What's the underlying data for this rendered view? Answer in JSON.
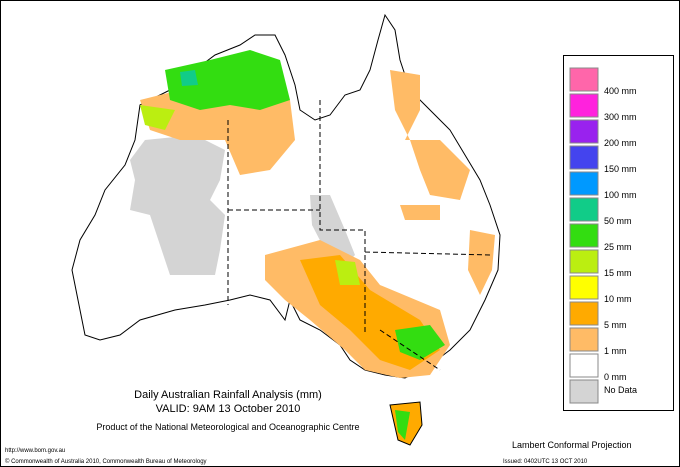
{
  "title": "Daily Australian Rainfall Analysis (mm)",
  "valid": "VALID: 9AM 13 October 2010",
  "product": "Product of the National Meteorological and Oceanographic Centre",
  "url": "http://www.bom.gov.au",
  "copyright": "© Commonwealth of Australia 2010, Commonwealth Bureau of Meteorology",
  "projection": "Lambert Conformal Projection",
  "issued": "Issued: 0402UTC 13 OCT 2010",
  "legend": [
    {
      "label": "400 mm",
      "color": "#ff66aa"
    },
    {
      "label": "300 mm",
      "color": "#ff22dd"
    },
    {
      "label": "200 mm",
      "color": "#9922ee"
    },
    {
      "label": "150 mm",
      "color": "#4444ee"
    },
    {
      "label": "100 mm",
      "color": "#0099ff"
    },
    {
      "label": "50 mm",
      "color": "#11cc88"
    },
    {
      "label": "25 mm",
      "color": "#33dd11"
    },
    {
      "label": "15 mm",
      "color": "#bbee11"
    },
    {
      "label": "10 mm",
      "color": "#ffff00"
    },
    {
      "label": "5 mm",
      "color": "#ffaa00"
    },
    {
      "label": "1 mm",
      "color": "#ffbb66"
    },
    {
      "label": "0 mm",
      "color": "#ffffff"
    },
    {
      "label": "No Data",
      "color": "#d4d4d4"
    }
  ]
}
